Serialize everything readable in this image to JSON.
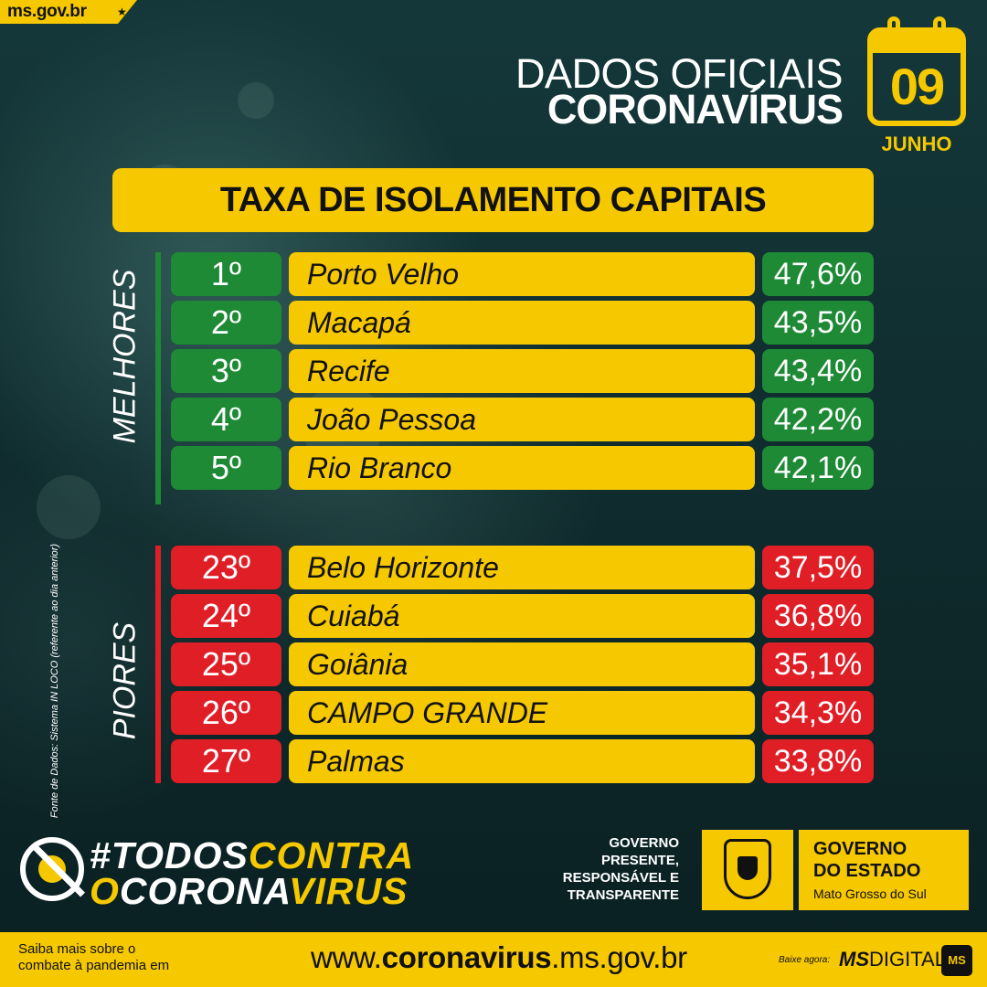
{
  "tag": {
    "site": "ms.gov.br",
    "star": "★"
  },
  "header": {
    "line1": "DADOS OFICIAIS",
    "line2": "CORONAVÍRUS"
  },
  "calendar": {
    "day": "09",
    "month": "JUNHO"
  },
  "banner": {
    "title": "TAXA DE ISOLAMENTO CAPITAIS"
  },
  "best": {
    "label": "MELHORES",
    "rows": [
      {
        "rank": "1º",
        "city": "Porto Velho",
        "rate": "47,6%"
      },
      {
        "rank": "2º",
        "city": "Macapá",
        "rate": "43,5%"
      },
      {
        "rank": "3º",
        "city": "Recife",
        "rate": "43,4%"
      },
      {
        "rank": "4º",
        "city": "João Pessoa",
        "rate": "42,2%"
      },
      {
        "rank": "5º",
        "city": "Rio Branco",
        "rate": "42,1%"
      }
    ]
  },
  "worst": {
    "label": "PIORES",
    "rows": [
      {
        "rank": "23º",
        "city": "Belo Horizonte",
        "rate": "37,5%"
      },
      {
        "rank": "24º",
        "city": "Cuiabá",
        "rate": "36,8%"
      },
      {
        "rank": "25º",
        "city": "Goiânia",
        "rate": "35,1%"
      },
      {
        "rank": "26º",
        "city": "CAMPO GRANDE",
        "rate": "34,3%"
      },
      {
        "rank": "27º",
        "city": "Palmas",
        "rate": "33,8%"
      }
    ]
  },
  "source": "Fonte de Dados: Sistema IN LOCO (referente ao dia anterior)",
  "campaign": {
    "line1_a": "#TODOS",
    "line1_b": "CONTRA",
    "line2_a": "O",
    "line2_b": "CORONA",
    "line2_c": "VIRUS"
  },
  "government": {
    "slogan_1": "GOVERNO",
    "slogan_2": "PRESENTE,",
    "slogan_3": "RESPONSÁVEL E",
    "slogan_4": "TRANSPARENTE",
    "name_1": "GOVERNO",
    "name_2": "DO ESTADO",
    "state": "Mato Grosso do Sul"
  },
  "footer": {
    "info_1": "Saiba mais sobre o",
    "info_2": "combate à pandemia em",
    "url_pre": "www.",
    "url_bold": "coronavirus",
    "url_post": ".ms.gov.br",
    "download": "Baixe agora:",
    "app_bold": "MS",
    "app_rest": "DIGITAL",
    "app_icon": "MS"
  },
  "colors": {
    "yellow": "#f5c800",
    "green": "#1e8a35",
    "red": "#e01e26",
    "background": "#0f2a2c"
  }
}
